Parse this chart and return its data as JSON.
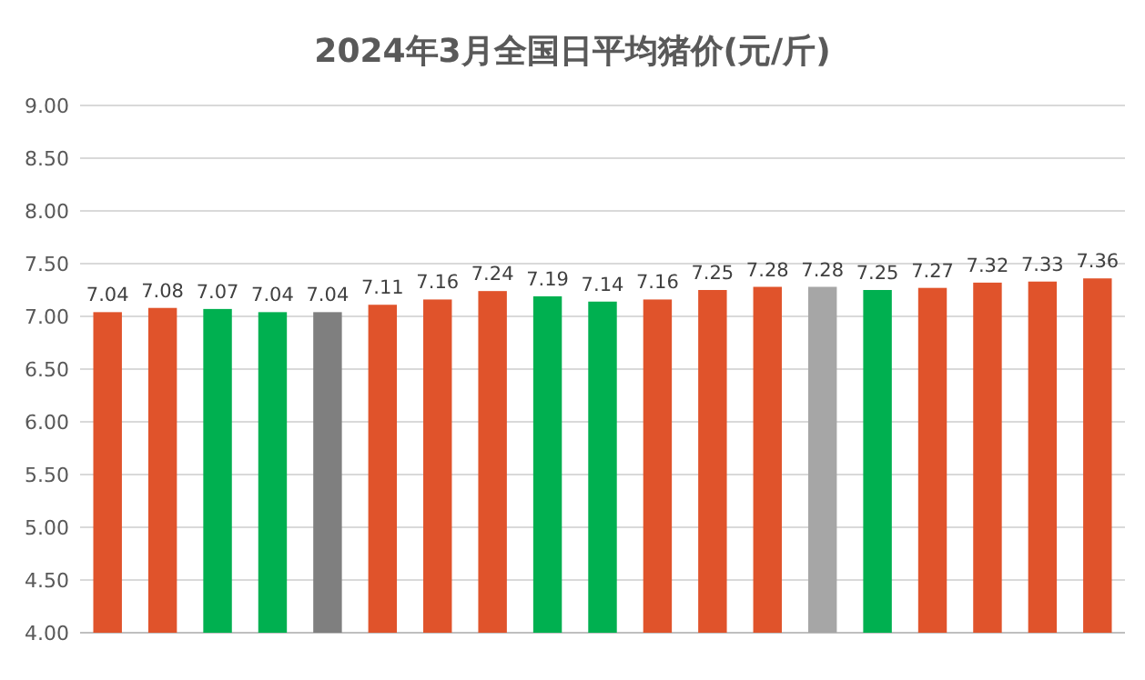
{
  "chart_data": {
    "type": "bar",
    "title": "2024年3月全国日平均猪价(元/斤)",
    "categories": [
      null,
      null,
      null,
      null,
      null,
      null,
      null,
      null,
      null,
      null,
      null,
      null,
      null,
      null,
      null,
      null,
      null,
      null,
      null
    ],
    "values": [
      7.04,
      7.08,
      7.07,
      7.04,
      7.04,
      7.11,
      7.16,
      7.24,
      7.19,
      7.14,
      7.16,
      7.25,
      7.28,
      7.28,
      7.25,
      7.27,
      7.32,
      7.33,
      7.36
    ],
    "colors": [
      "#e0532b",
      "#e0532b",
      "#00b050",
      "#00b050",
      "#7f7f7f",
      "#e0532b",
      "#e0532b",
      "#e0532b",
      "#00b050",
      "#00b050",
      "#e0532b",
      "#e0532b",
      "#e0532b",
      "#a6a6a6",
      "#00b050",
      "#e0532b",
      "#e0532b",
      "#e0532b",
      "#e0532b"
    ],
    "ylim": [
      4,
      9
    ],
    "yticks": [
      {
        "value": 4,
        "label": "4.00"
      },
      {
        "value": 4.5,
        "label": "4.50"
      },
      {
        "value": 5,
        "label": "5.00"
      },
      {
        "value": 5.5,
        "label": "5.50"
      },
      {
        "value": 6,
        "label": "6.00"
      },
      {
        "value": 6.5,
        "label": "6.50"
      },
      {
        "value": 7,
        "label": "7.00"
      },
      {
        "value": 7.5,
        "label": "7.50"
      },
      {
        "value": 8,
        "label": "8.00"
      },
      {
        "value": 8.5,
        "label": "8.50"
      },
      {
        "value": 9,
        "label": "9.00"
      }
    ],
    "grid": "y",
    "data_labels": true,
    "tick_labels": "y"
  }
}
